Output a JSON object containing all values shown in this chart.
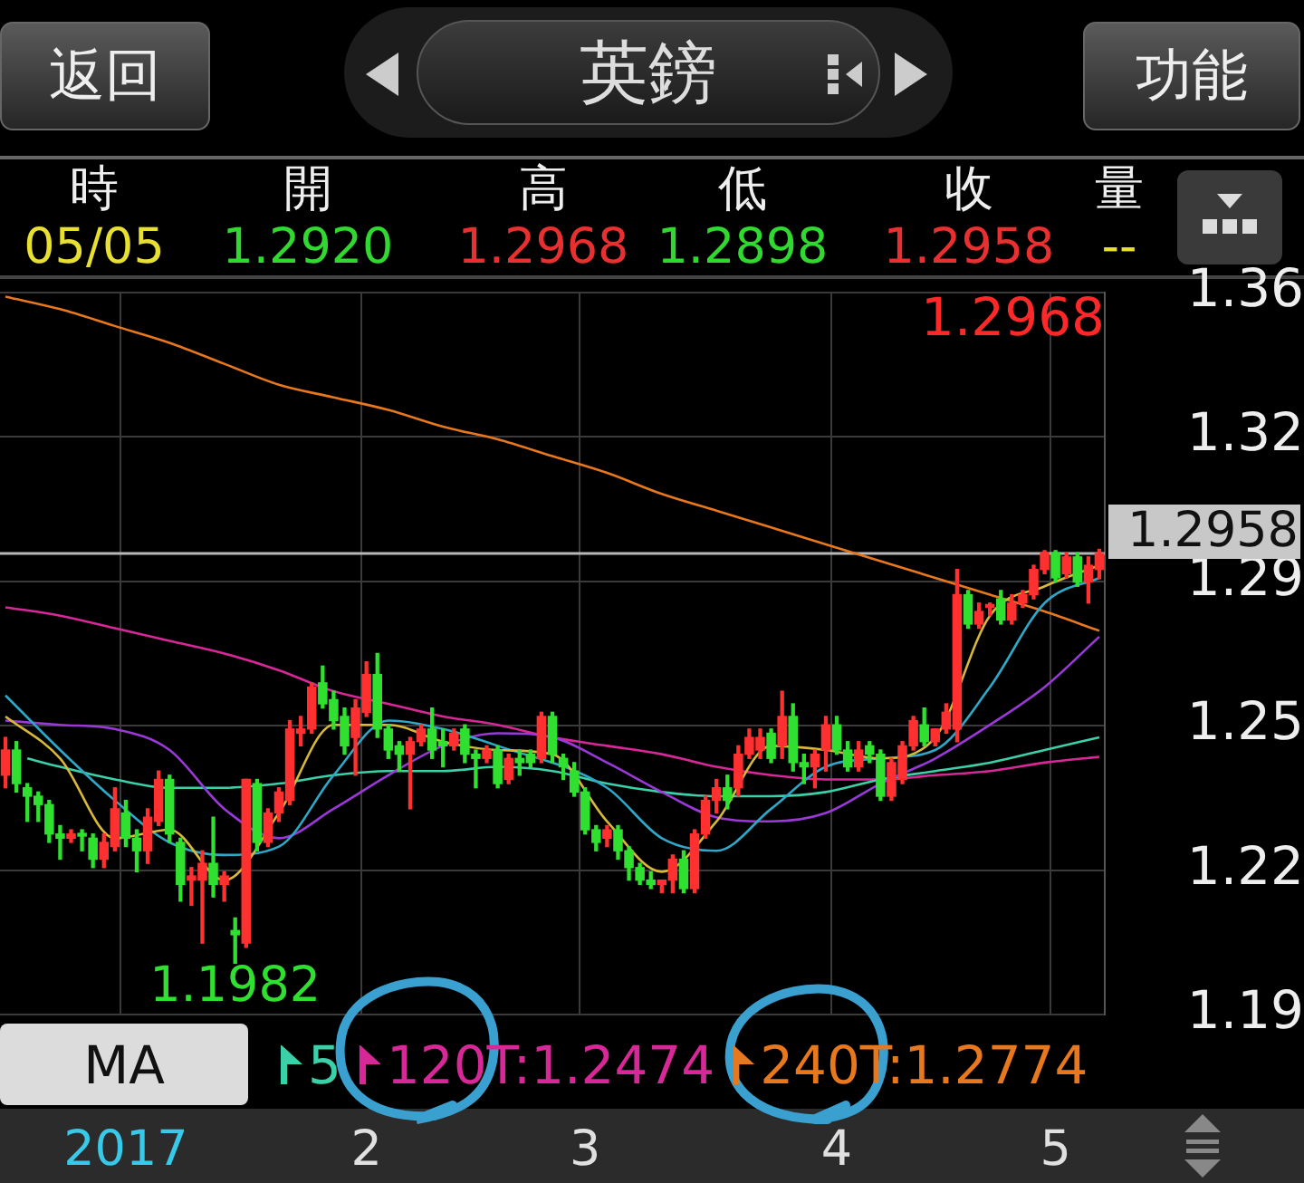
{
  "chart_data": {
    "type": "candlestick",
    "title": "英鎊",
    "categories": [
      null,
      null,
      null,
      null,
      null,
      null,
      null,
      null,
      null,
      null,
      null,
      "2017",
      null,
      null,
      null,
      null,
      null,
      null,
      null,
      null,
      null,
      null,
      null,
      null,
      null,
      null,
      null,
      null,
      null,
      null,
      null,
      null,
      null,
      "2",
      null,
      null,
      null,
      null,
      null,
      null,
      null,
      null,
      null,
      null,
      null,
      null,
      null,
      null,
      null,
      null,
      null,
      null,
      null,
      "3",
      null,
      null,
      null,
      null,
      null,
      null,
      null,
      null,
      null,
      null,
      null,
      null,
      null,
      null,
      null,
      null,
      null,
      null,
      null,
      null,
      null,
      null,
      "4",
      null,
      null,
      null,
      null,
      null,
      null,
      null,
      null,
      null,
      null,
      null,
      null,
      null,
      null,
      null,
      null,
      null,
      null,
      null,
      "5",
      null,
      null,
      null,
      null
    ],
    "ohlc": [
      [
        1.243,
        1.252,
        1.24,
        1.249
      ],
      [
        1.249,
        1.251,
        1.239,
        1.241
      ],
      [
        1.24,
        1.241,
        1.232,
        1.238
      ],
      [
        1.238,
        1.239,
        1.232,
        1.236
      ],
      [
        1.236,
        1.237,
        1.227,
        1.229
      ],
      [
        1.229,
        1.231,
        1.223,
        1.228
      ],
      [
        1.228,
        1.23,
        1.227,
        1.229
      ],
      [
        1.229,
        1.23,
        1.225,
        1.2285
      ],
      [
        1.228,
        1.229,
        1.221,
        1.223
      ],
      [
        1.223,
        1.229,
        1.221,
        1.227
      ],
      [
        1.226,
        1.24,
        1.225,
        1.235
      ],
      [
        1.234,
        1.237,
        1.226,
        1.228
      ],
      [
        1.228,
        1.23,
        1.22,
        1.225
      ],
      [
        1.225,
        1.235,
        1.222,
        1.233
      ],
      [
        1.232,
        1.244,
        1.231,
        1.242
      ],
      [
        1.242,
        1.243,
        1.227,
        1.229
      ],
      [
        1.227,
        1.228,
        1.213,
        1.217
      ],
      [
        1.218,
        1.221,
        1.212,
        1.219
      ],
      [
        1.218,
        1.225,
        1.203,
        1.222
      ],
      [
        1.222,
        1.233,
        1.214,
        1.217
      ],
      [
        1.217,
        1.22,
        1.213,
        1.219
      ],
      [
        1.206,
        1.209,
        1.1982,
        1.205
      ],
      [
        1.203,
        1.242,
        1.202,
        1.242
      ],
      [
        1.241,
        1.242,
        1.225,
        1.227
      ],
      [
        1.227,
        1.235,
        1.226,
        1.234
      ],
      [
        1.234,
        1.24,
        1.232,
        1.239
      ],
      [
        1.237,
        1.256,
        1.236,
        1.254
      ],
      [
        1.253,
        1.257,
        1.25,
        1.254
      ],
      [
        1.254,
        1.265,
        1.253,
        1.264
      ],
      [
        1.265,
        1.269,
        1.259,
        1.26
      ],
      [
        1.261,
        1.263,
        1.254,
        1.256
      ],
      [
        1.257,
        1.259,
        1.248,
        1.25
      ],
      [
        1.252,
        1.261,
        1.243,
        1.259
      ],
      [
        1.258,
        1.27,
        1.257,
        1.267
      ],
      [
        1.267,
        1.272,
        1.252,
        1.254
      ],
      [
        1.254,
        1.255,
        1.247,
        1.249
      ],
      [
        1.25,
        1.251,
        1.244,
        1.248
      ],
      [
        1.248,
        1.252,
        1.235,
        1.251
      ],
      [
        1.251,
        1.255,
        1.25,
        1.254
      ],
      [
        1.254,
        1.259,
        1.247,
        1.249
      ],
      [
        1.251,
        1.254,
        1.245,
        1.25
      ],
      [
        1.25,
        1.254,
        1.249,
        1.253
      ],
      [
        1.254,
        1.255,
        1.246,
        1.248
      ],
      [
        1.248,
        1.249,
        1.24,
        1.247
      ],
      [
        1.247,
        1.25,
        1.246,
        1.249
      ],
      [
        1.249,
        1.25,
        1.24,
        1.241
      ],
      [
        1.242,
        1.248,
        1.241,
        1.247
      ],
      [
        1.247,
        1.249,
        1.243,
        1.246
      ],
      [
        1.248,
        1.249,
        1.245,
        1.246
      ],
      [
        1.247,
        1.258,
        1.246,
        1.257
      ],
      [
        1.257,
        1.258,
        1.246,
        1.248
      ],
      [
        1.247,
        1.248,
        1.242,
        1.245
      ],
      [
        1.244,
        1.246,
        1.238,
        1.239
      ],
      [
        1.239,
        1.24,
        1.229,
        1.23
      ],
      [
        1.23,
        1.231,
        1.225,
        1.227
      ],
      [
        1.228,
        1.231,
        1.226,
        1.23
      ],
      [
        1.23,
        1.231,
        1.223,
        1.225
      ],
      [
        1.225,
        1.226,
        1.218,
        1.221
      ],
      [
        1.221,
        1.222,
        1.217,
        1.218
      ],
      [
        1.218,
        1.22,
        1.216,
        1.217
      ],
      [
        1.217,
        1.218,
        1.215,
        1.218
      ],
      [
        1.218,
        1.224,
        1.215,
        1.223
      ],
      [
        1.223,
        1.225,
        1.215,
        1.216
      ],
      [
        1.216,
        1.23,
        1.215,
        1.229
      ],
      [
        1.229,
        1.238,
        1.228,
        1.237
      ],
      [
        1.237,
        1.242,
        1.234,
        1.24
      ],
      [
        1.24,
        1.243,
        1.235,
        1.237
      ],
      [
        1.24,
        1.25,
        1.238,
        1.248
      ],
      [
        1.248,
        1.254,
        1.247,
        1.252
      ],
      [
        1.249,
        1.254,
        1.247,
        1.252
      ],
      [
        1.253,
        1.254,
        1.246,
        1.247
      ],
      [
        1.25,
        1.263,
        1.247,
        1.257
      ],
      [
        1.257,
        1.26,
        1.244,
        1.246
      ],
      [
        1.246,
        1.248,
        1.241,
        1.245
      ],
      [
        1.245,
        1.249,
        1.24,
        1.248
      ],
      [
        1.249,
        1.257,
        1.244,
        1.255
      ],
      [
        1.255,
        1.257,
        1.248,
        1.249
      ],
      [
        1.249,
        1.251,
        1.244,
        1.245
      ],
      [
        1.245,
        1.251,
        1.244,
        1.249
      ],
      [
        1.25,
        1.251,
        1.246,
        1.248
      ],
      [
        1.248,
        1.249,
        1.237,
        1.238
      ],
      [
        1.238,
        1.247,
        1.237,
        1.246
      ],
      [
        1.242,
        1.251,
        1.241,
        1.25
      ],
      [
        1.25,
        1.257,
        1.249,
        1.256
      ],
      [
        1.255,
        1.259,
        1.25,
        1.251
      ],
      [
        1.251,
        1.254,
        1.25,
        1.254
      ],
      [
        1.254,
        1.26,
        1.253,
        1.258
      ],
      [
        1.254,
        1.292,
        1.251,
        1.286
      ],
      [
        1.286,
        1.287,
        1.278,
        1.279
      ],
      [
        1.279,
        1.284,
        1.278,
        1.282
      ],
      [
        1.283,
        1.284,
        1.281,
        1.2835
      ],
      [
        1.285,
        1.287,
        1.279,
        1.28
      ],
      [
        1.28,
        1.286,
        1.279,
        1.284
      ],
      [
        1.284,
        1.287,
        1.283,
        1.286
      ],
      [
        1.286,
        1.293,
        1.285,
        1.292
      ],
      [
        1.292,
        1.2965,
        1.291,
        1.296
      ],
      [
        1.296,
        1.2965,
        1.289,
        1.29
      ],
      [
        1.291,
        1.296,
        1.29,
        1.295
      ],
      [
        1.295,
        1.296,
        1.288,
        1.289
      ],
      [
        1.289,
        1.295,
        1.284,
        1.293
      ],
      [
        1.292,
        1.2968,
        1.2898,
        1.2958
      ]
    ],
    "colors": [
      "#ff3030",
      "#30e030",
      "#30e030",
      "#30e030",
      "#30e030",
      "#30e030",
      "#ff3030",
      "#30e030",
      "#30e030",
      "#ff3030",
      "#ff3030",
      "#30e030",
      "#30e030",
      "#ff3030",
      "#ff3030",
      "#30e030",
      "#30e030",
      "#ff3030",
      "#ff3030",
      "#30e030",
      "#ff3030",
      "#30e030",
      "#ff3030",
      "#30e030",
      "#ff3030",
      "#ff3030",
      "#ff3030",
      "#ff3030",
      "#ff3030",
      "#30e030",
      "#30e030",
      "#30e030",
      "#ff3030",
      "#ff3030",
      "#30e030",
      "#30e030",
      "#30e030",
      "#ff3030",
      "#ff3030",
      "#30e030",
      "#30e030",
      "#ff3030",
      "#30e030",
      "#30e030",
      "#ff3030",
      "#30e030",
      "#ff3030",
      "#30e030",
      "#30e030",
      "#ff3030",
      "#30e030",
      "#30e030",
      "#30e030",
      "#30e030",
      "#30e030",
      "#ff3030",
      "#30e030",
      "#30e030",
      "#30e030",
      "#30e030",
      "#ff3030",
      "#ff3030",
      "#30e030",
      "#ff3030",
      "#ff3030",
      "#ff3030",
      "#30e030",
      "#ff3030",
      "#ff3030",
      "#ff3030",
      "#30e030",
      "#ff3030",
      "#30e030",
      "#30e030",
      "#ff3030",
      "#ff3030",
      "#30e030",
      "#30e030",
      "#ff3030",
      "#30e030",
      "#30e030",
      "#ff3030",
      "#ff3030",
      "#ff3030",
      "#30e030",
      "#ff3030",
      "#ff3030",
      "#ff3030",
      "#30e030",
      "#ff3030",
      "#ff3030",
      "#30e030",
      "#ff3030",
      "#ff3030",
      "#ff3030",
      "#ff3030",
      "#30e030",
      "#ff3030",
      "#30e030",
      "#ff3030",
      "#ff3030"
    ],
    "series": [
      {
        "type": "line",
        "color": "#d8b838",
        "values": [
          1.257,
          null,
          null,
          null,
          null,
          1.247,
          null,
          null,
          null,
          null,
          1.228,
          null,
          null,
          null,
          null,
          1.23,
          null,
          null,
          null,
          null,
          1.218,
          null,
          null,
          null,
          null,
          1.234,
          null,
          null,
          null,
          null,
          1.255,
          null,
          null,
          null,
          null,
          1.255,
          null,
          null,
          null,
          null,
          1.251,
          null,
          null,
          null,
          null,
          1.249,
          null,
          null,
          null,
          null,
          1.248,
          null,
          null,
          null,
          null,
          1.232,
          null,
          null,
          null,
          null,
          1.22,
          null,
          null,
          null,
          null,
          1.232,
          null,
          null,
          null,
          null,
          1.25,
          null,
          null,
          null,
          null,
          1.249,
          null,
          null,
          null,
          null,
          1.247,
          null,
          null,
          null,
          null,
          1.252,
          null,
          null,
          null,
          null,
          1.281,
          null,
          null,
          null,
          null,
          1.288,
          null,
          null,
          null,
          null,
          1.293
        ]
      },
      {
        "type": "line",
        "color": "#2ea8c8",
        "values": [
          1.262,
          null,
          null,
          null,
          null,
          1.249,
          null,
          null,
          null,
          null,
          1.237,
          null,
          null,
          null,
          null,
          1.227,
          null,
          null,
          null,
          null,
          1.224,
          null,
          null,
          null,
          null,
          1.226,
          null,
          null,
          null,
          null,
          1.243,
          null,
          null,
          null,
          null,
          1.256,
          null,
          null,
          null,
          null,
          1.254,
          null,
          null,
          null,
          null,
          1.25,
          null,
          null,
          null,
          null,
          null,
          null,
          null,
          null,
          null,
          1.24,
          null,
          null,
          null,
          null,
          1.228,
          null,
          null,
          null,
          null,
          1.225,
          null,
          null,
          null,
          null,
          1.235,
          null,
          null,
          null,
          null,
          1.245,
          null,
          null,
          null,
          null,
          1.247,
          null,
          null,
          null,
          null,
          1.249,
          null,
          null,
          null,
          null,
          1.264,
          null,
          null,
          null,
          null,
          1.284,
          null,
          null,
          null,
          null,
          1.29
        ]
      },
      {
        "type": "line",
        "color": "#9a38d8",
        "values": [
          1.256,
          null,
          null,
          null,
          null,
          1.255,
          null,
          null,
          null,
          null,
          1.254,
          null,
          null,
          null,
          null,
          1.249,
          null,
          null,
          null,
          null,
          1.235,
          null,
          null,
          null,
          null,
          1.228,
          null,
          null,
          null,
          null,
          1.235,
          null,
          null,
          null,
          null,
          1.243,
          null,
          null,
          null,
          null,
          1.25,
          null,
          null,
          null,
          null,
          1.253,
          null,
          null,
          null,
          null,
          1.252,
          null,
          null,
          null,
          null,
          1.246,
          null,
          null,
          null,
          null,
          1.239,
          null,
          null,
          null,
          null,
          1.233,
          null,
          null,
          null,
          null,
          1.232,
          null,
          null,
          null,
          null,
          1.234,
          null,
          null,
          null,
          null,
          1.241,
          null,
          null,
          null,
          null,
          1.247,
          null,
          null,
          null,
          null,
          1.255,
          null,
          null,
          null,
          null,
          1.264,
          null,
          null,
          null,
          null,
          1.276
        ]
      },
      {
        "type": "line",
        "name": "5",
        "color": "#3cd0a8",
        "values": [
          null,
          null,
          1.247,
          null,
          null,
          1.245,
          null,
          null,
          null,
          null,
          1.242,
          null,
          null,
          null,
          null,
          1.24,
          null,
          null,
          null,
          null,
          1.24,
          null,
          null,
          null,
          null,
          1.241,
          null,
          null,
          null,
          null,
          1.243,
          null,
          null,
          null,
          null,
          1.244,
          null,
          null,
          null,
          null,
          1.244,
          null,
          null,
          null,
          null,
          1.245,
          null,
          null,
          null,
          null,
          1.244,
          null,
          null,
          null,
          null,
          1.241,
          null,
          null,
          null,
          null,
          1.239,
          null,
          null,
          null,
          null,
          1.238,
          null,
          null,
          null,
          null,
          1.238,
          null,
          null,
          null,
          null,
          1.239,
          null,
          null,
          null,
          null,
          1.242,
          null,
          null,
          null,
          null,
          1.244,
          null,
          null,
          null,
          null,
          1.246,
          null,
          null,
          null,
          null,
          1.249,
          null,
          null,
          null,
          null,
          1.252
        ]
      },
      {
        "type": "line",
        "name": "120T:1.2474",
        "color": "#d82898",
        "values": [
          1.283,
          null,
          null,
          null,
          null,
          1.281,
          null,
          null,
          null,
          null,
          1.278,
          null,
          null,
          null,
          null,
          1.275,
          null,
          null,
          null,
          null,
          1.272,
          null,
          null,
          null,
          null,
          1.268,
          null,
          null,
          null,
          null,
          1.263,
          null,
          null,
          null,
          null,
          1.26,
          null,
          null,
          null,
          null,
          1.257,
          null,
          null,
          null,
          null,
          1.255,
          null,
          null,
          null,
          null,
          1.252,
          null,
          null,
          null,
          null,
          1.25,
          null,
          null,
          null,
          null,
          1.248,
          null,
          null,
          null,
          null,
          1.245,
          null,
          null,
          null,
          null,
          1.243,
          null,
          null,
          null,
          null,
          1.242,
          null,
          null,
          null,
          null,
          1.242,
          null,
          null,
          null,
          null,
          1.243,
          null,
          null,
          null,
          null,
          1.244,
          null,
          null,
          null,
          null,
          1.246,
          null,
          null,
          null,
          null,
          1.2474
        ]
      },
      {
        "type": "line",
        "name": "240T:1.2774",
        "color": "#e8781e",
        "values": [
          1.357,
          null,
          null,
          null,
          null,
          1.354,
          null,
          null,
          null,
          null,
          1.35,
          null,
          null,
          null,
          null,
          1.346,
          null,
          null,
          null,
          null,
          1.341,
          null,
          null,
          null,
          null,
          1.336,
          null,
          null,
          null,
          null,
          1.333,
          null,
          null,
          null,
          null,
          1.33,
          null,
          null,
          null,
          null,
          1.326,
          null,
          null,
          null,
          null,
          1.323,
          null,
          null,
          null,
          null,
          1.319,
          null,
          null,
          null,
          null,
          1.315,
          null,
          null,
          null,
          null,
          1.31,
          null,
          null,
          null,
          null,
          1.306,
          null,
          null,
          null,
          null,
          1.302,
          null,
          null,
          null,
          null,
          1.298,
          null,
          null,
          null,
          null,
          1.294,
          null,
          null,
          null,
          null,
          1.29,
          null,
          null,
          null,
          null,
          1.286,
          null,
          null,
          null,
          null,
          1.282,
          null,
          null,
          null,
          null,
          1.2774
        ]
      }
    ],
    "ylim": [
      1.186,
      1.358
    ],
    "yticks": [
      {
        "value": 1.358,
        "label": "1.36"
      },
      {
        "value": 1.3236,
        "label": "1.32"
      },
      {
        "value": 1.2892,
        "label": "1.29"
      },
      {
        "value": 1.2548,
        "label": "1.25"
      },
      {
        "value": 1.2204,
        "label": "1.22"
      },
      {
        "value": 1.186,
        "label": "1.19"
      }
    ],
    "ref_lines": [
      {
        "axis": "y",
        "value": 1.2958,
        "label": "1.2958",
        "color": "#b8b8b8"
      }
    ],
    "annotations": [
      "返回",
      "功能",
      "時",
      "開",
      "高",
      "低",
      "收",
      "量",
      "05/05",
      "1.2920",
      "1.2968",
      "1.2898",
      "1.2958",
      "--",
      "MA",
      "1.2968",
      {
        "text": "1.1982",
        "y": 1.1982
      }
    ],
    "grid": true,
    "legend": "bottom"
  }
}
